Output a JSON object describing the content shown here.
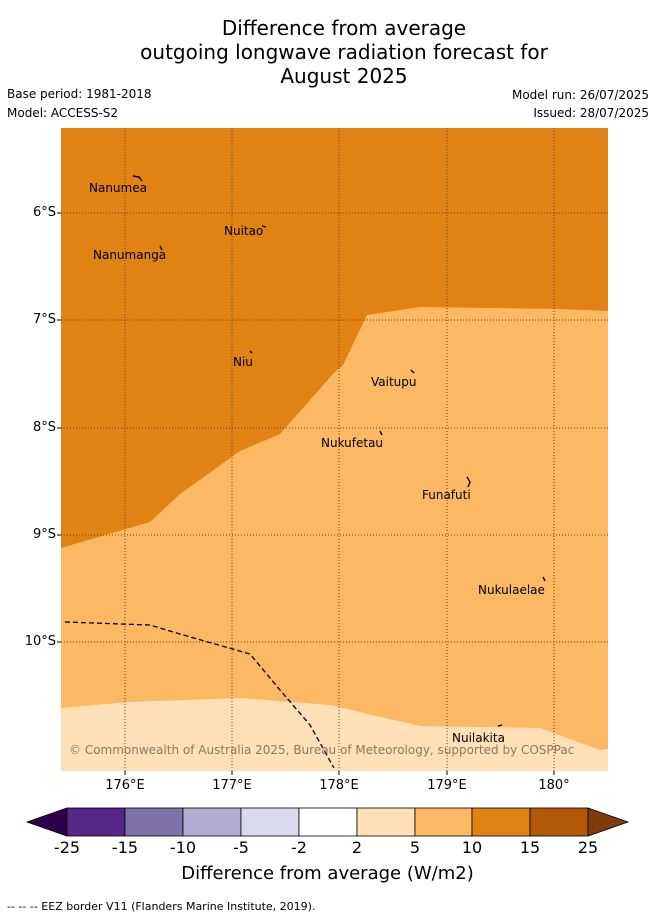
{
  "title": {
    "line1": "Difference from average",
    "line2": "outgoing longwave radiation forecast for",
    "line3": "August 2025"
  },
  "meta": {
    "base_period": "Base period: 1981-2018",
    "model": "Model: ACCESS-S2",
    "model_run": "Model run: 26/07/2025",
    "issued": "Issued: 28/07/2025"
  },
  "map": {
    "lat_labels": [
      "6°S",
      "7°S",
      "8°S",
      "9°S",
      "10°S"
    ],
    "lon_labels": [
      "176°E",
      "177°E",
      "178°E",
      "179°E",
      "180°"
    ],
    "places": [
      "Nanumea",
      "Nuitao",
      "Nanumanga",
      "Niu",
      "Vaitupu",
      "Nukufetau",
      "Funafuti",
      "Nukulaelae",
      "Nuilakita"
    ],
    "copyright": "© Commonwealth of Australia 2025, Bureau of Meteorology, supported by COSPPac",
    "regions": [
      {
        "category": "10 to 15",
        "color": "#e08214"
      },
      {
        "category": "5 to 10",
        "color": "#fdb863"
      },
      {
        "category": "2 to 5",
        "color": "#fee0b6"
      }
    ]
  },
  "colorbar": {
    "title": "Difference from average (W/m2)",
    "ticks": [
      "-25",
      "-15",
      "-10",
      "-5",
      "-2",
      "2",
      "5",
      "10",
      "15",
      "25"
    ],
    "colors": [
      "#2d004b",
      "#542788",
      "#8073ac",
      "#b2abd2",
      "#d8daeb",
      "#ffffff",
      "#fee0b6",
      "#fdb863",
      "#e08214",
      "#b35806",
      "#7f3b08"
    ]
  },
  "footer": "--  --  -- EEZ border V11 (Flanders Marine Institute, 2019)."
}
